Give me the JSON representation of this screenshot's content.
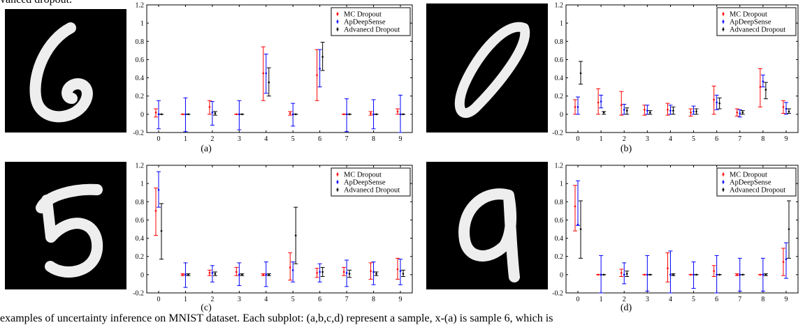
{
  "text": {
    "top_fragment": "vanced dropout.",
    "bottom_fragment": "examples of uncertainty inference on MNIST dataset. Each subplot: (a,b,c,d) represent a sample, x-(a) is sample 6, which is"
  },
  "colors": {
    "mc": "#ff0000",
    "ap": "#0000ff",
    "adv": "#000000"
  },
  "legend": [
    "MC Dropout",
    "ApDeepSense",
    "Advanecd Dropout"
  ],
  "chart_data": [
    {
      "type": "scatter",
      "caption": "(a)",
      "digit": "6",
      "x": [
        0,
        1,
        2,
        3,
        4,
        5,
        6,
        7,
        8,
        9
      ],
      "xticks": [
        "0",
        "1",
        "2",
        "3",
        "4",
        "5",
        "6",
        "7",
        "8",
        "9"
      ],
      "ylim": [
        -0.2,
        1.2
      ],
      "yticks": [
        "-0.2",
        "0",
        "0.2",
        "0.4",
        "0.6",
        "0.8",
        "1",
        "1.2"
      ],
      "series": [
        {
          "name": "MC Dropout",
          "values": [
            0.02,
            0.0,
            0.08,
            0.0,
            0.45,
            0.01,
            0.43,
            0.0,
            0.01,
            0.03
          ],
          "lower": [
            -0.03,
            0.0,
            0.0,
            0.0,
            0.15,
            -0.01,
            0.15,
            0.0,
            -0.01,
            0.0
          ],
          "upper": [
            0.06,
            0.0,
            0.15,
            0.0,
            0.74,
            0.03,
            0.71,
            0.0,
            0.03,
            0.06
          ]
        },
        {
          "name": "ApDeepSense",
          "values": [
            0.0,
            0.0,
            0.02,
            0.0,
            0.45,
            0.0,
            0.5,
            0.0,
            0.0,
            0.0
          ],
          "lower": [
            -0.16,
            -0.19,
            -0.12,
            -0.17,
            0.23,
            -0.13,
            0.3,
            -0.19,
            -0.16,
            -0.2
          ],
          "upper": [
            0.15,
            0.18,
            0.14,
            0.15,
            0.66,
            0.12,
            0.71,
            0.17,
            0.16,
            0.21
          ]
        },
        {
          "name": "Advanecd Dropout",
          "values": [
            0.0,
            0.0,
            0.01,
            0.0,
            0.35,
            0.0,
            0.63,
            0.0,
            0.0,
            0.0
          ],
          "lower": [
            0.0,
            0.0,
            -0.01,
            0.0,
            0.2,
            0.0,
            0.48,
            0.0,
            0.0,
            0.0
          ],
          "upper": [
            0.0,
            0.0,
            0.03,
            0.0,
            0.51,
            0.0,
            0.79,
            0.0,
            0.0,
            0.0
          ]
        }
      ]
    },
    {
      "type": "scatter",
      "caption": "(b)",
      "digit": "0",
      "x": [
        0,
        1,
        2,
        3,
        4,
        5,
        6,
        7,
        8,
        9
      ],
      "xticks": [
        "0",
        "1",
        "2",
        "3",
        "4",
        "5",
        "6",
        "7",
        "8",
        "9"
      ],
      "ylim": [
        -0.2,
        1.2
      ],
      "yticks": [
        "-0.2",
        "0",
        "0.2",
        "0.4",
        "0.6",
        "0.8",
        "1",
        "1.2"
      ],
      "series": [
        {
          "name": "MC Dropout",
          "values": [
            0.08,
            0.13,
            0.1,
            0.05,
            0.05,
            0.02,
            0.16,
            0.02,
            0.3,
            0.08
          ],
          "lower": [
            0.0,
            0.0,
            -0.01,
            -0.01,
            -0.01,
            -0.02,
            0.0,
            -0.02,
            0.08,
            0.01
          ],
          "upper": [
            0.16,
            0.28,
            0.25,
            0.1,
            0.12,
            0.06,
            0.31,
            0.06,
            0.5,
            0.15
          ]
        },
        {
          "name": "ApDeepSense",
          "values": [
            0.08,
            0.14,
            0.05,
            0.04,
            0.04,
            0.03,
            0.13,
            0.01,
            0.36,
            0.06
          ],
          "lower": [
            0.0,
            0.07,
            0.0,
            0.0,
            0.0,
            0.0,
            0.05,
            -0.03,
            0.3,
            0.0
          ],
          "upper": [
            0.19,
            0.21,
            0.11,
            0.1,
            0.1,
            0.09,
            0.21,
            0.05,
            0.43,
            0.13
          ]
        },
        {
          "name": "Advanecd Dropout",
          "values": [
            0.45,
            0.02,
            0.04,
            0.02,
            0.04,
            0.03,
            0.12,
            0.02,
            0.27,
            0.03
          ],
          "lower": [
            0.33,
            0.0,
            0.0,
            0.0,
            0.0,
            0.0,
            0.06,
            0.0,
            0.17,
            0.01
          ],
          "upper": [
            0.58,
            0.03,
            0.07,
            0.04,
            0.08,
            0.06,
            0.18,
            0.04,
            0.35,
            0.06
          ]
        }
      ]
    },
    {
      "type": "scatter",
      "caption": "(c)",
      "digit": "5",
      "x": [
        0,
        1,
        2,
        3,
        4,
        5,
        6,
        7,
        8,
        9
      ],
      "xticks": [
        "0",
        "1",
        "2",
        "3",
        "4",
        "5",
        "6",
        "7",
        "8",
        "9"
      ],
      "ylim": [
        -0.2,
        1.2
      ],
      "yticks": [
        "-0.2",
        "0",
        "0.2",
        "0.4",
        "0.6",
        "0.8",
        "1",
        "1.2"
      ],
      "series": [
        {
          "name": "MC Dropout",
          "values": [
            0.7,
            0.0,
            0.02,
            0.03,
            0.0,
            0.08,
            0.02,
            0.03,
            0.04,
            0.06
          ],
          "lower": [
            0.43,
            -0.01,
            -0.01,
            -0.01,
            -0.01,
            -0.06,
            -0.03,
            -0.01,
            -0.05,
            -0.05
          ],
          "upper": [
            0.95,
            0.01,
            0.05,
            0.08,
            0.01,
            0.24,
            0.07,
            0.08,
            0.13,
            0.18
          ]
        },
        {
          "name": "ApDeepSense",
          "values": [
            0.93,
            0.0,
            0.02,
            0.0,
            0.0,
            0.05,
            0.03,
            0.02,
            0.03,
            0.04
          ],
          "lower": [
            0.74,
            -0.14,
            -0.08,
            -0.12,
            -0.13,
            -0.08,
            -0.08,
            -0.13,
            -0.11,
            -0.11
          ],
          "upper": [
            1.13,
            0.13,
            0.1,
            0.13,
            0.14,
            0.14,
            0.12,
            0.16,
            0.14,
            0.17
          ]
        },
        {
          "name": "Advanecd Dropout",
          "values": [
            0.48,
            0.0,
            0.01,
            0.0,
            0.0,
            0.43,
            0.03,
            0.01,
            0.01,
            0.01
          ],
          "lower": [
            0.17,
            -0.01,
            -0.01,
            -0.01,
            -0.01,
            0.12,
            -0.02,
            -0.03,
            -0.01,
            -0.02
          ],
          "upper": [
            0.78,
            0.01,
            0.03,
            0.01,
            0.01,
            0.74,
            0.08,
            0.05,
            0.03,
            0.05
          ]
        }
      ]
    },
    {
      "type": "scatter",
      "caption": "(d)",
      "digit": "9",
      "x": [
        0,
        1,
        2,
        3,
        4,
        5,
        6,
        7,
        8,
        9
      ],
      "xticks": [
        "0",
        "1",
        "2",
        "3",
        "4",
        "5",
        "6",
        "7",
        "8",
        "9"
      ],
      "ylim": [
        -0.2,
        1.2
      ],
      "yticks": [
        "-0.2",
        "0",
        "0.2",
        "0.4",
        "0.6",
        "0.8",
        "1",
        "1.2"
      ],
      "series": [
        {
          "name": "MC Dropout",
          "values": [
            0.75,
            0.0,
            0.02,
            0.0,
            0.07,
            0.0,
            0.04,
            0.0,
            0.0,
            0.14
          ],
          "lower": [
            0.48,
            0.0,
            -0.02,
            0.0,
            -0.08,
            0.0,
            -0.02,
            -0.01,
            0.0,
            -0.01
          ],
          "upper": [
            0.98,
            0.0,
            0.06,
            0.0,
            0.24,
            0.0,
            0.1,
            0.01,
            0.0,
            0.29
          ]
        },
        {
          "name": "ApDeepSense",
          "values": [
            0.55,
            0.0,
            0.0,
            0.0,
            0.0,
            0.0,
            0.0,
            0.0,
            0.0,
            0.17
          ],
          "lower": [
            0.54,
            -0.2,
            -0.1,
            -0.18,
            -0.22,
            -0.15,
            -0.2,
            -0.18,
            -0.18,
            -0.04
          ],
          "upper": [
            1.03,
            0.21,
            0.13,
            0.21,
            0.26,
            0.14,
            0.21,
            0.18,
            0.18,
            0.35
          ]
        },
        {
          "name": "Advanecd Dropout",
          "values": [
            0.5,
            0.0,
            0.01,
            0.0,
            0.0,
            0.0,
            0.0,
            0.0,
            0.0,
            0.5
          ],
          "lower": [
            0.18,
            0.0,
            -0.02,
            0.0,
            -0.01,
            0.0,
            0.0,
            0.0,
            -0.01,
            0.18
          ],
          "upper": [
            0.81,
            0.0,
            0.04,
            0.0,
            0.01,
            0.0,
            0.0,
            0.0,
            0.01,
            0.81
          ]
        }
      ]
    }
  ]
}
